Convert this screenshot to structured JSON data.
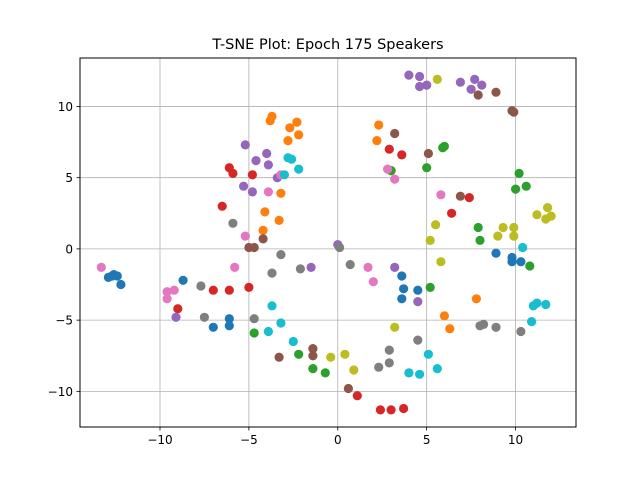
{
  "chart_data": {
    "type": "scatter",
    "title": "T-SNE Plot: Epoch 175 Speakers",
    "xlabel": "",
    "ylabel": "",
    "xlim": [
      -14.5,
      13.4
    ],
    "ylim": [
      -12.5,
      13.4
    ],
    "xticks": [
      -10,
      -5,
      0,
      5,
      10
    ],
    "xtick_labels": [
      "−10",
      "−5",
      "0",
      "5",
      "10"
    ],
    "yticks": [
      -10,
      -5,
      0,
      5,
      10
    ],
    "ytick_labels": [
      "−10",
      "−5",
      "0",
      "5",
      "10"
    ],
    "grid": true,
    "legend": "none",
    "series": [
      {
        "color": "#1f77b4",
        "points": [
          [
            -12.7,
            -1.9
          ],
          [
            -12.6,
            -1.8
          ],
          [
            -12.4,
            -1.9
          ],
          [
            -12.9,
            -2.0
          ],
          [
            -12.2,
            -2.5
          ],
          [
            -8.7,
            -2.2
          ],
          [
            -7.0,
            -5.5
          ],
          [
            -6.1,
            -4.9
          ],
          [
            -6.1,
            -5.4
          ],
          [
            3.6,
            -1.9
          ],
          [
            3.7,
            -2.8
          ],
          [
            3.6,
            -3.5
          ],
          [
            4.5,
            -2.9
          ],
          [
            8.9,
            -0.3
          ],
          [
            9.8,
            -0.6
          ],
          [
            9.8,
            -0.9
          ],
          [
            10.3,
            -0.9
          ]
        ]
      },
      {
        "color": "#ff7f0e",
        "points": [
          [
            -3.7,
            9.3
          ],
          [
            -3.8,
            9.0
          ],
          [
            -2.3,
            8.9
          ],
          [
            -2.7,
            8.5
          ],
          [
            -2.2,
            8.0
          ],
          [
            -2.8,
            7.6
          ],
          [
            -3.2,
            3.9
          ],
          [
            -4.1,
            2.6
          ],
          [
            -3.3,
            2.0
          ],
          [
            -4.2,
            1.3
          ],
          [
            2.3,
            8.7
          ],
          [
            2.2,
            7.6
          ],
          [
            3.0,
            5.5
          ],
          [
            6.0,
            -4.7
          ],
          [
            6.3,
            -5.6
          ],
          [
            7.8,
            -3.5
          ]
        ]
      },
      {
        "color": "#2ca02c",
        "points": [
          [
            3.0,
            5.5
          ],
          [
            5.0,
            5.7
          ],
          [
            5.9,
            7.1
          ],
          [
            6.0,
            7.2
          ],
          [
            10.2,
            5.3
          ],
          [
            10.6,
            4.4
          ],
          [
            10.0,
            4.2
          ],
          [
            5.2,
            -2.7
          ],
          [
            -4.7,
            -5.9
          ],
          [
            -2.2,
            -7.4
          ],
          [
            -1.4,
            -8.4
          ],
          [
            -0.7,
            -8.7
          ],
          [
            7.9,
            1.5
          ],
          [
            8.0,
            0.6
          ],
          [
            10.8,
            -1.2
          ]
        ]
      },
      {
        "color": "#d62728",
        "points": [
          [
            -6.1,
            5.7
          ],
          [
            -5.9,
            5.3
          ],
          [
            -4.8,
            5.2
          ],
          [
            -6.5,
            3.0
          ],
          [
            -6.1,
            -2.9
          ],
          [
            -7.0,
            -2.9
          ],
          [
            -5.0,
            -2.7
          ],
          [
            -9.0,
            -4.2
          ],
          [
            2.9,
            7.0
          ],
          [
            3.6,
            6.6
          ],
          [
            6.4,
            2.5
          ],
          [
            7.4,
            3.6
          ],
          [
            2.4,
            -11.3
          ],
          [
            3.0,
            -11.3
          ],
          [
            3.7,
            -11.2
          ],
          [
            1.1,
            -10.3
          ]
        ]
      },
      {
        "color": "#9467bd",
        "points": [
          [
            -5.2,
            7.3
          ],
          [
            -4.6,
            6.2
          ],
          [
            -4.0,
            6.7
          ],
          [
            -3.9,
            5.9
          ],
          [
            -3.4,
            5.0
          ],
          [
            -5.3,
            4.4
          ],
          [
            -4.8,
            4.0
          ],
          [
            4.0,
            12.2
          ],
          [
            4.6,
            12.1
          ],
          [
            5.0,
            11.5
          ],
          [
            4.6,
            11.4
          ],
          [
            6.9,
            11.7
          ],
          [
            7.7,
            11.9
          ],
          [
            7.5,
            11.2
          ],
          [
            8.1,
            11.5
          ],
          [
            0.0,
            0.3
          ],
          [
            -1.5,
            -1.3
          ],
          [
            3.2,
            -1.3
          ],
          [
            4.5,
            -3.7
          ],
          [
            -9.1,
            -4.8
          ]
        ]
      },
      {
        "color": "#8c564b",
        "points": [
          [
            3.2,
            8.1
          ],
          [
            5.1,
            6.7
          ],
          [
            -4.2,
            0.7
          ],
          [
            -5.0,
            0.1
          ],
          [
            -4.7,
            0.1
          ],
          [
            -1.4,
            -7.0
          ],
          [
            -1.4,
            -7.5
          ],
          [
            -3.3,
            -7.6
          ],
          [
            0.6,
            -9.8
          ],
          [
            6.9,
            3.7
          ],
          [
            7.9,
            10.8
          ],
          [
            8.9,
            11.0
          ],
          [
            9.8,
            9.7
          ],
          [
            9.9,
            9.6
          ]
        ]
      },
      {
        "color": "#e377c2",
        "points": [
          [
            -13.3,
            -1.3
          ],
          [
            -9.6,
            -3.0
          ],
          [
            -9.6,
            -3.5
          ],
          [
            -9.2,
            -2.9
          ],
          [
            -5.8,
            -1.3
          ],
          [
            -5.2,
            0.9
          ],
          [
            -3.9,
            4.0
          ],
          [
            -3.2,
            5.2
          ],
          [
            2.8,
            5.6
          ],
          [
            3.2,
            4.9
          ],
          [
            1.7,
            -1.3
          ],
          [
            2.0,
            -2.3
          ],
          [
            5.8,
            3.8
          ]
        ]
      },
      {
        "color": "#7f7f7f",
        "points": [
          [
            -5.9,
            1.8
          ],
          [
            -3.7,
            -1.7
          ],
          [
            -3.2,
            -0.4
          ],
          [
            -2.1,
            -1.4
          ],
          [
            0.1,
            0.1
          ],
          [
            0.7,
            -1.1
          ],
          [
            -7.7,
            -2.6
          ],
          [
            -7.5,
            -4.8
          ],
          [
            -4.7,
            -4.9
          ],
          [
            2.3,
            -8.3
          ],
          [
            2.9,
            -7.1
          ],
          [
            2.9,
            -8.0
          ],
          [
            4.5,
            -6.4
          ],
          [
            8.0,
            -5.4
          ],
          [
            8.2,
            -5.3
          ],
          [
            8.9,
            -5.5
          ],
          [
            10.3,
            -5.8
          ]
        ]
      },
      {
        "color": "#bcbd22",
        "points": [
          [
            5.6,
            11.9
          ],
          [
            5.5,
            1.7
          ],
          [
            5.8,
            -0.9
          ],
          [
            5.2,
            0.6
          ],
          [
            9.0,
            0.9
          ],
          [
            9.3,
            1.5
          ],
          [
            9.9,
            1.5
          ],
          [
            9.9,
            0.9
          ],
          [
            11.2,
            2.4
          ],
          [
            11.7,
            2.1
          ],
          [
            11.8,
            2.9
          ],
          [
            12.0,
            2.3
          ],
          [
            -0.4,
            -7.6
          ],
          [
            0.4,
            -7.4
          ],
          [
            0.9,
            -8.5
          ],
          [
            3.2,
            -5.5
          ]
        ]
      },
      {
        "color": "#17becf",
        "points": [
          [
            -2.8,
            6.4
          ],
          [
            -2.6,
            6.3
          ],
          [
            -3.0,
            5.2
          ],
          [
            -2.2,
            5.6
          ],
          [
            -3.7,
            -4.0
          ],
          [
            -3.9,
            -5.8
          ],
          [
            -3.2,
            -5.2
          ],
          [
            -2.5,
            -6.5
          ],
          [
            4.0,
            -8.7
          ],
          [
            4.6,
            -8.8
          ],
          [
            5.1,
            -7.4
          ],
          [
            5.6,
            -8.4
          ],
          [
            10.9,
            -5.1
          ],
          [
            11.0,
            -4.0
          ],
          [
            11.2,
            -3.8
          ],
          [
            11.7,
            -3.9
          ],
          [
            10.4,
            0.1
          ]
        ]
      }
    ]
  }
}
